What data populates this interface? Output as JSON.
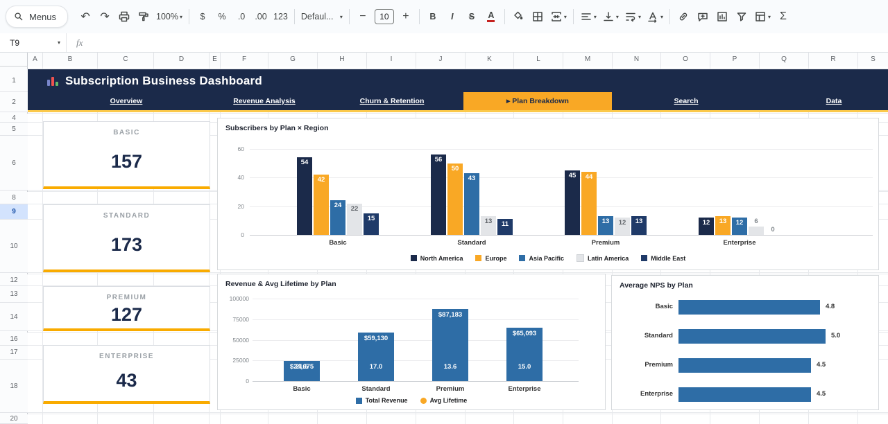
{
  "toolbar": {
    "menus_label": "Menus",
    "zoom_value": "100%",
    "format_buttons": {
      "currency": "$",
      "percent": "%",
      "decrease_decimal": ".0",
      "increase_decimal": ".00",
      "more_formats": "123"
    },
    "font_name": "Defaul...",
    "font_size": "10",
    "minus": "−",
    "plus": "+",
    "bold": "B",
    "italic": "I",
    "strikethrough": "S",
    "text_color": "A",
    "functions": "Σ"
  },
  "icons": {
    "search": "magnifier",
    "undo": "↶",
    "redo": "↷",
    "dropdown": "▾",
    "print": "printer",
    "paint_format": "paint-roller",
    "fill_color": "paint-bucket",
    "borders": "border-grid",
    "merge_cells": "merge-arrows",
    "horizontal_align": "align-lines",
    "vertical_align": "arrow-to-bar",
    "text_wrap": "wrap-arrow",
    "text_rotation": "rotated-a",
    "insert_link": "chain",
    "insert_comment": "bubble-plus",
    "insert_chart": "column-chart-box",
    "filter": "funnel",
    "table_views": "table-grid",
    "banner_chart": "colored-bar-chart",
    "formula": "fx"
  },
  "formula_bar": {
    "name_box": "T9",
    "fx": "fx"
  },
  "grid": {
    "column_headers": [
      "A",
      "B",
      "C",
      "D",
      "E",
      "F",
      "G",
      "H",
      "I",
      "J",
      "K",
      "L",
      "M",
      "N",
      "O",
      "P",
      "Q",
      "R",
      "S"
    ],
    "row_headers": [
      "1",
      "2",
      "4",
      "5",
      "6",
      "8",
      "9",
      "10",
      "12",
      "13",
      "14",
      "16",
      "17",
      "18",
      "20"
    ],
    "selected_row": "9"
  },
  "dashboard": {
    "banner": {
      "title": "Subscription Business Dashboard"
    },
    "nav": {
      "tabs": [
        {
          "label": "Overview",
          "active": false
        },
        {
          "label": "Revenue Analysis",
          "active": false
        },
        {
          "label": "Churn & Retention",
          "active": false
        },
        {
          "label": "▸ Plan Breakdown",
          "active": true
        },
        {
          "label": "Search",
          "active": false
        },
        {
          "label": "Data",
          "active": false
        }
      ]
    },
    "kpi_cards": [
      {
        "label": "BASIC",
        "value": "157"
      },
      {
        "label": "STANDARD",
        "value": "173"
      },
      {
        "label": "PREMIUM",
        "value": "127"
      },
      {
        "label": "ENTERPRISE",
        "value": "43"
      }
    ]
  },
  "colors": {
    "navy": "#1b2a4a",
    "navy2": "#1f3a68",
    "gold": "#f9a825",
    "gold_line": "#f9ab00",
    "blue": "#2e6da6",
    "light_gray_series": "#e3e5e8"
  },
  "chart_data": [
    {
      "type": "bar",
      "title": "Subscribers by Plan × Region",
      "categories": [
        "Basic",
        "Standard",
        "Premium",
        "Enterprise"
      ],
      "series": [
        {
          "name": "North America",
          "color": "#1b2a4a",
          "values": [
            54,
            56,
            45,
            12
          ]
        },
        {
          "name": "Europe",
          "color": "#f9a825",
          "values": [
            42,
            50,
            44,
            13
          ]
        },
        {
          "name": "Asia Pacific",
          "color": "#2e6da6",
          "values": [
            24,
            43,
            13,
            12
          ]
        },
        {
          "name": "Latin America",
          "color": "#e3e5e8",
          "values": [
            22,
            13,
            12,
            6
          ]
        },
        {
          "name": "Middle East",
          "color": "#1f3a68",
          "values": [
            15,
            11,
            13,
            0
          ]
        }
      ],
      "ylim": [
        0,
        60
      ],
      "yticks": [
        0,
        20,
        40,
        60
      ],
      "grid": true,
      "legend_position": "bottom"
    },
    {
      "type": "bar",
      "title": "Revenue & Avg Lifetime by Plan",
      "categories": [
        "Basic",
        "Standard",
        "Premium",
        "Enterprise"
      ],
      "series": [
        {
          "name": "Total Revenue",
          "color": "#2e6da6",
          "values": [
            24675,
            59130,
            87183,
            65093
          ],
          "labels": [
            "$24,675",
            "$59,130",
            "$87,183",
            "$65,093"
          ]
        },
        {
          "name": "Avg Lifetime",
          "color": "#f9a825",
          "values": [
            21.5,
            17.0,
            13.6,
            15.0
          ],
          "labels": [
            "21.5",
            "17.0",
            "13.6",
            "15.0"
          ]
        }
      ],
      "ylim": [
        0,
        100000
      ],
      "yticks": [
        0,
        25000,
        50000,
        75000,
        100000
      ],
      "grid": true,
      "legend_position": "bottom"
    },
    {
      "type": "bar",
      "orientation": "horizontal",
      "title": "Average NPS by Plan",
      "categories": [
        "Basic",
        "Standard",
        "Premium",
        "Enterprise"
      ],
      "values": [
        4.8,
        5.0,
        4.5,
        4.5
      ],
      "xlim": [
        0,
        5.5
      ],
      "grid": false
    }
  ]
}
